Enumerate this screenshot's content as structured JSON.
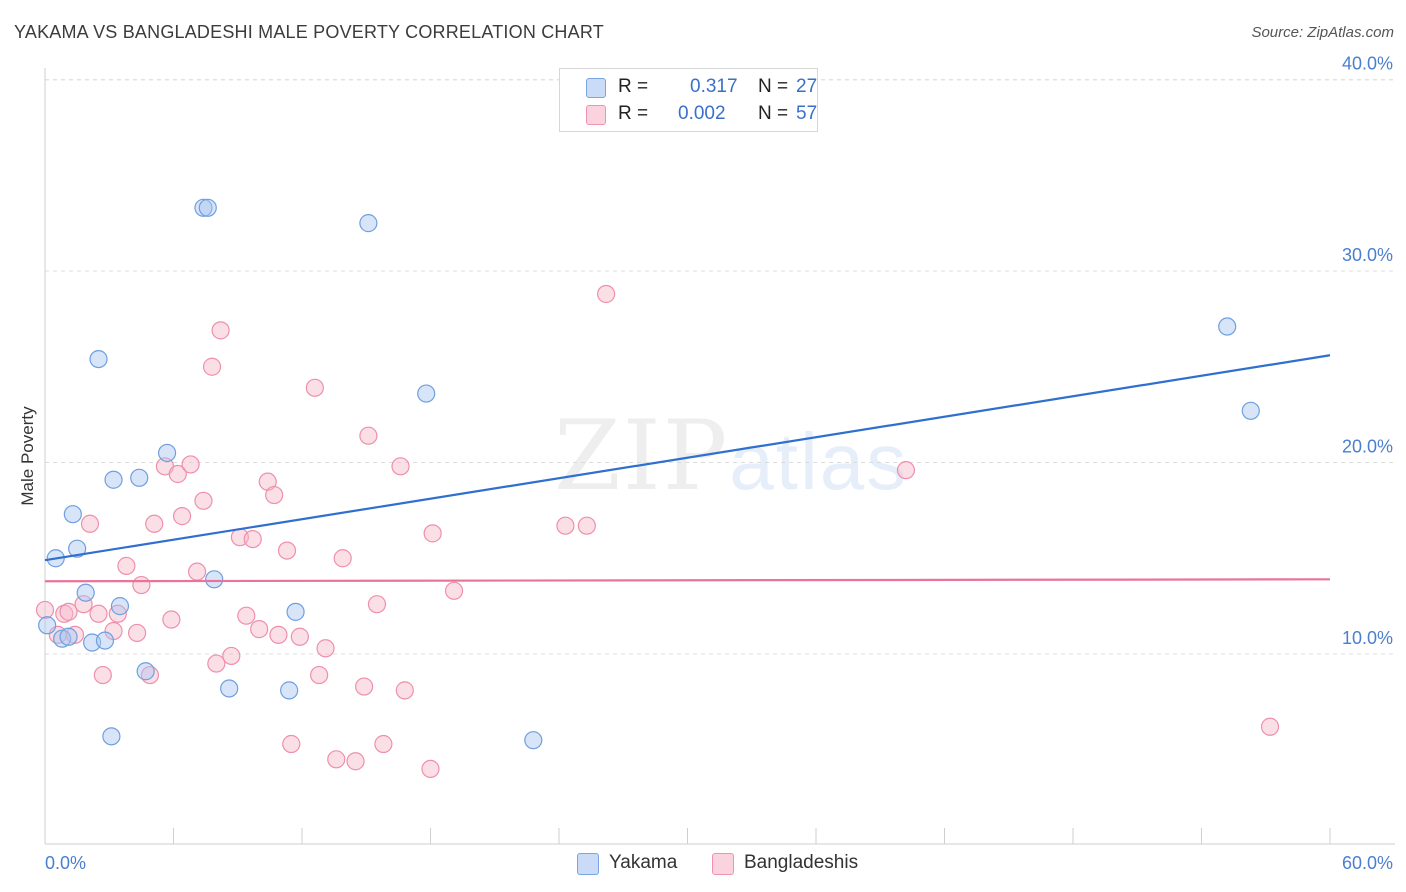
{
  "header": {
    "title": "YAKAMA VS BANGLADESHI MALE POVERTY CORRELATION CHART",
    "source": "Source: ZipAtlas.com"
  },
  "watermark": {
    "zip": "ZIP",
    "atlas": "atlas"
  },
  "legend": {
    "rows": [
      {
        "r_label": "R =",
        "r_value": "0.317",
        "n_label": "N =",
        "n_value": "27",
        "color": "#a9c6f0"
      },
      {
        "r_label": "R =",
        "r_value": "0.002",
        "n_label": "N =",
        "n_value": "57",
        "color": "#f7b8c9"
      }
    ]
  },
  "bottom_legend": [
    {
      "label": "Yakama",
      "color": "#a9c6f0"
    },
    {
      "label": "Bangladeshis",
      "color": "#f7b8c9"
    }
  ],
  "chart_data": {
    "type": "scatter",
    "title": "YAKAMA VS BANGLADESHI MALE POVERTY CORRELATION CHART",
    "xlabel": "",
    "ylabel": "Male Poverty",
    "xlim": [
      0,
      60
    ],
    "ylim": [
      0,
      42
    ],
    "x_tick_labels": [
      "0.0%",
      "60.0%"
    ],
    "y_ticks": [
      10,
      20,
      30,
      40
    ],
    "y_tick_labels": [
      "10.0%",
      "20.0%",
      "30.0%",
      "40.0%"
    ],
    "grid": true,
    "legend_position": "top-center",
    "series": [
      {
        "name": "Yakama",
        "color": "#6f9fe0",
        "fill": "#a9c6f0",
        "trend": {
          "x": [
            0,
            60
          ],
          "y": [
            14.9,
            25.6
          ],
          "color": "#2f6fcf"
        },
        "points": [
          [
            0.1,
            11.5
          ],
          [
            0.5,
            15.0
          ],
          [
            0.8,
            10.8
          ],
          [
            1.1,
            10.9
          ],
          [
            1.3,
            17.3
          ],
          [
            1.5,
            15.5
          ],
          [
            1.9,
            13.2
          ],
          [
            2.2,
            10.6
          ],
          [
            2.5,
            25.4
          ],
          [
            2.8,
            10.7
          ],
          [
            3.1,
            5.7
          ],
          [
            3.2,
            19.1
          ],
          [
            3.5,
            12.5
          ],
          [
            4.4,
            19.2
          ],
          [
            4.7,
            9.1
          ],
          [
            5.7,
            20.5
          ],
          [
            7.4,
            33.3
          ],
          [
            7.6,
            33.3
          ],
          [
            7.9,
            13.9
          ],
          [
            8.6,
            8.2
          ],
          [
            11.4,
            8.1
          ],
          [
            11.7,
            12.2
          ],
          [
            15.1,
            32.5
          ],
          [
            17.8,
            23.6
          ],
          [
            22.8,
            5.5
          ],
          [
            55.2,
            27.1
          ],
          [
            56.3,
            22.7
          ]
        ]
      },
      {
        "name": "Bangladeshis",
        "color": "#ef8fab",
        "fill": "#f7b8c9",
        "trend": {
          "x": [
            0,
            60
          ],
          "y": [
            13.8,
            13.9
          ],
          "color": "#e8749a"
        },
        "points": [
          [
            0.0,
            12.3
          ],
          [
            0.6,
            11.0
          ],
          [
            0.9,
            12.1
          ],
          [
            1.1,
            12.2
          ],
          [
            1.4,
            11.0
          ],
          [
            1.8,
            12.6
          ],
          [
            2.1,
            16.8
          ],
          [
            2.5,
            12.1
          ],
          [
            2.7,
            8.9
          ],
          [
            3.2,
            11.2
          ],
          [
            3.4,
            12.1
          ],
          [
            3.8,
            14.6
          ],
          [
            4.3,
            11.1
          ],
          [
            4.5,
            13.6
          ],
          [
            4.9,
            8.9
          ],
          [
            5.1,
            16.8
          ],
          [
            5.6,
            19.8
          ],
          [
            5.9,
            11.8
          ],
          [
            6.2,
            19.4
          ],
          [
            6.4,
            17.2
          ],
          [
            6.8,
            19.9
          ],
          [
            7.1,
            14.3
          ],
          [
            7.4,
            18.0
          ],
          [
            7.8,
            25.0
          ],
          [
            8.0,
            9.5
          ],
          [
            8.2,
            26.9
          ],
          [
            8.7,
            9.9
          ],
          [
            9.1,
            16.1
          ],
          [
            9.4,
            12.0
          ],
          [
            9.7,
            16.0
          ],
          [
            10.0,
            11.3
          ],
          [
            10.4,
            19.0
          ],
          [
            10.7,
            18.3
          ],
          [
            10.9,
            11.0
          ],
          [
            11.3,
            15.4
          ],
          [
            11.5,
            5.3
          ],
          [
            11.9,
            10.9
          ],
          [
            12.6,
            23.9
          ],
          [
            12.8,
            8.9
          ],
          [
            13.1,
            10.3
          ],
          [
            13.6,
            4.5
          ],
          [
            13.9,
            15.0
          ],
          [
            14.5,
            4.4
          ],
          [
            14.9,
            8.3
          ],
          [
            15.1,
            21.4
          ],
          [
            15.5,
            12.6
          ],
          [
            15.8,
            5.3
          ],
          [
            16.6,
            19.8
          ],
          [
            16.8,
            8.1
          ],
          [
            18.0,
            4.0
          ],
          [
            18.1,
            16.3
          ],
          [
            19.1,
            13.3
          ],
          [
            24.3,
            16.7
          ],
          [
            25.3,
            16.7
          ],
          [
            26.2,
            28.8
          ],
          [
            40.2,
            19.6
          ],
          [
            57.2,
            6.2
          ]
        ]
      }
    ]
  }
}
